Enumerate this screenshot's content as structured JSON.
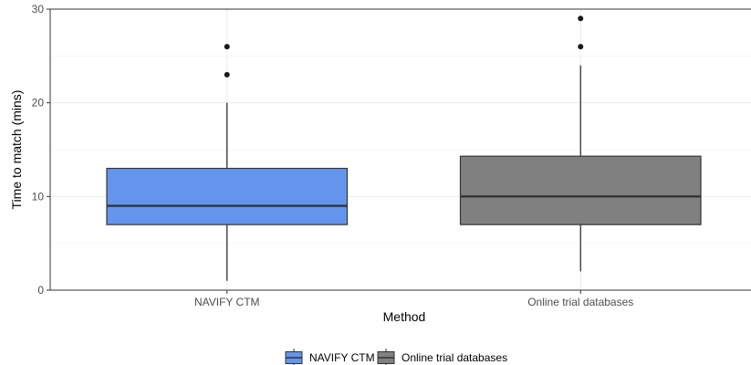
{
  "chart_data": {
    "type": "boxplot",
    "title": "",
    "xlabel": "Method",
    "ylabel": "Time to match (mins)",
    "ylim": [
      0,
      30
    ],
    "yticks": [
      0,
      10,
      20,
      30
    ],
    "categories": [
      "NAVIFY CTM",
      "Online trial databases"
    ],
    "grid": true,
    "legend_position": "bottom",
    "legend_entries": [
      "NAVIFY CTM",
      "Online trial databases"
    ],
    "series": [
      {
        "category": "NAVIFY CTM",
        "whisker_low": 1,
        "q1": 7,
        "median": 9,
        "q3": 13,
        "whisker_high": 20,
        "outliers": [
          23,
          26
        ],
        "color": "#6495ED"
      },
      {
        "category": "Online trial databases",
        "whisker_low": 2,
        "q1": 7,
        "median": 10,
        "q3": 14.3,
        "whisker_high": 24,
        "outliers": [
          26,
          29
        ],
        "color": "#808080"
      }
    ]
  }
}
